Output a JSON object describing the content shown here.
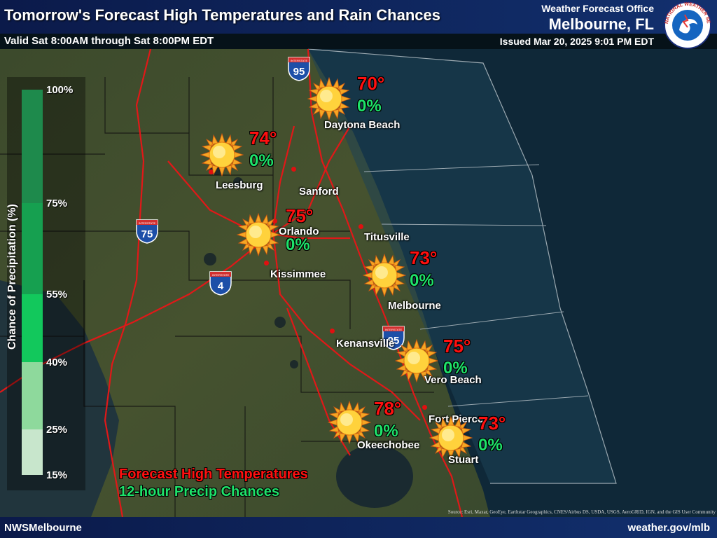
{
  "header": {
    "title": "Tomorrow's Forecast High Temperatures and Rain Chances",
    "valid": "Valid Sat 8:00AM through Sat 8:00PM EDT",
    "office_line1": "Weather Forecast Office",
    "office_line2": "Melbourne, FL",
    "issued": "Issued Mar 20, 2025 9:01 PM EDT",
    "logo_text": "NATIONAL WEATHER SERVICE"
  },
  "legend": {
    "title": "Chance of Precipitation (%)",
    "labels": [
      "100%",
      "75%",
      "55%",
      "40%",
      "25%",
      "15%"
    ],
    "colors": [
      "#1e8a4c",
      "#16a050",
      "#12c85c",
      "#8ed99c",
      "#c8e6cc"
    ],
    "forecast_label": "Forecast High Temperatures",
    "precip_label": "12-hour Precip Chances"
  },
  "forecasts": [
    {
      "city": "Daytona Beach",
      "temp": "70°",
      "pop": "0%",
      "icon": "sun-icon"
    },
    {
      "city": "Leesburg",
      "temp": "74°",
      "pop": "0%",
      "icon": "sun-icon"
    },
    {
      "city": "Orlando",
      "temp": "75°",
      "pop": "0%",
      "icon": "sun-icon"
    },
    {
      "city": "Melbourne",
      "temp": "73°",
      "pop": "0%",
      "icon": "sun-icon"
    },
    {
      "city": "Vero Beach",
      "temp": "75°",
      "pop": "0%",
      "icon": "sun-icon"
    },
    {
      "city": "Okeechobee",
      "temp": "78°",
      "pop": "0%",
      "icon": "sun-icon"
    },
    {
      "city": "Stuart",
      "temp": "73°",
      "pop": "0%",
      "icon": "sun-icon"
    }
  ],
  "other_cities": [
    "Sanford",
    "Titusville",
    "Kissimmee",
    "Kenansville",
    "Fort Pierce"
  ],
  "interstates": [
    "95",
    "75",
    "4",
    "95"
  ],
  "interstate_label": "INTERSTATE",
  "footer": {
    "left": "NWSMelbourne",
    "right": "weather.gov/mlb",
    "source": "Source: Esri, Maxar, GeoEye, Earthstar Geographics, CNES/Airbus DS, USDA, USGS, AeroGRID, IGN, and the GIS User Community"
  }
}
